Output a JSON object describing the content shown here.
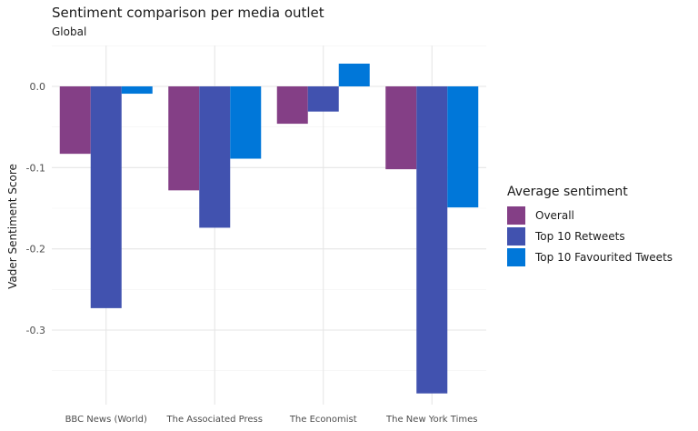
{
  "chart_data": {
    "type": "bar",
    "title": "Sentiment comparison per media outlet",
    "subtitle": "Global",
    "xlabel": "",
    "ylabel": "Vader Sentiment Score",
    "categories": [
      "BBC News (World)",
      "The Associated Press",
      "The Economist",
      "The New York Times"
    ],
    "series": [
      {
        "name": "Overall",
        "color": "#843f86",
        "values": [
          -0.083,
          -0.128,
          -0.046,
          -0.102
        ]
      },
      {
        "name": "Top 10 Retweets",
        "color": "#4152af",
        "values": [
          -0.273,
          -0.174,
          -0.031,
          -0.378
        ]
      },
      {
        "name": "Top 10 Favourited Tweets",
        "color": "#0077d9",
        "values": [
          -0.009,
          -0.089,
          0.028,
          -0.149
        ]
      }
    ],
    "ylim": [
      -0.39,
      0.05
    ],
    "yticks": [
      0.0,
      -0.1,
      -0.2,
      -0.3
    ],
    "ytick_labels": [
      "0.0",
      "-0.1",
      "-0.2",
      "-0.3"
    ],
    "grid": true,
    "legend": {
      "title": "Average sentiment",
      "placement": "right"
    }
  }
}
